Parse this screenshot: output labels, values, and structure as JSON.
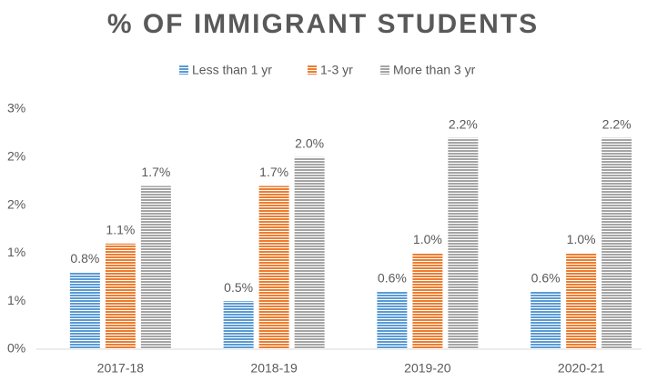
{
  "chart_data": {
    "type": "bar",
    "title": "% OF IMMIGRANT STUDENTS",
    "categories": [
      "2017-18",
      "2018-19",
      "2019-20",
      "2020-21"
    ],
    "series": [
      {
        "name": "Less than 1 yr",
        "color": "#5b9bd5",
        "values": [
          0.8,
          0.5,
          0.6,
          0.6
        ],
        "value_labels": [
          "0.8%",
          "0.5%",
          "0.6%",
          "0.6%"
        ]
      },
      {
        "name": "1-3 yr",
        "color": "#ed7d31",
        "values": [
          1.1,
          1.7,
          1.0,
          1.0
        ],
        "value_labels": [
          "1.1%",
          "1.7%",
          "1.0%",
          "1.0%"
        ]
      },
      {
        "name": "More than 3 yr",
        "color": "#a5a5a5",
        "values": [
          1.7,
          2.0,
          2.2,
          2.2
        ],
        "value_labels": [
          "1.7%",
          "2.0%",
          "2.2%",
          "2.2%"
        ]
      }
    ],
    "ylim": [
      0,
      2.5
    ],
    "yticks": [
      {
        "value": 0,
        "label": "0%"
      },
      {
        "value": 0.5,
        "label": "1%"
      },
      {
        "value": 1.0,
        "label": "1%"
      },
      {
        "value": 1.5,
        "label": "2%"
      },
      {
        "value": 2.0,
        "label": "2%"
      },
      {
        "value": 2.5,
        "label": "3%"
      }
    ],
    "legend": "top"
  }
}
